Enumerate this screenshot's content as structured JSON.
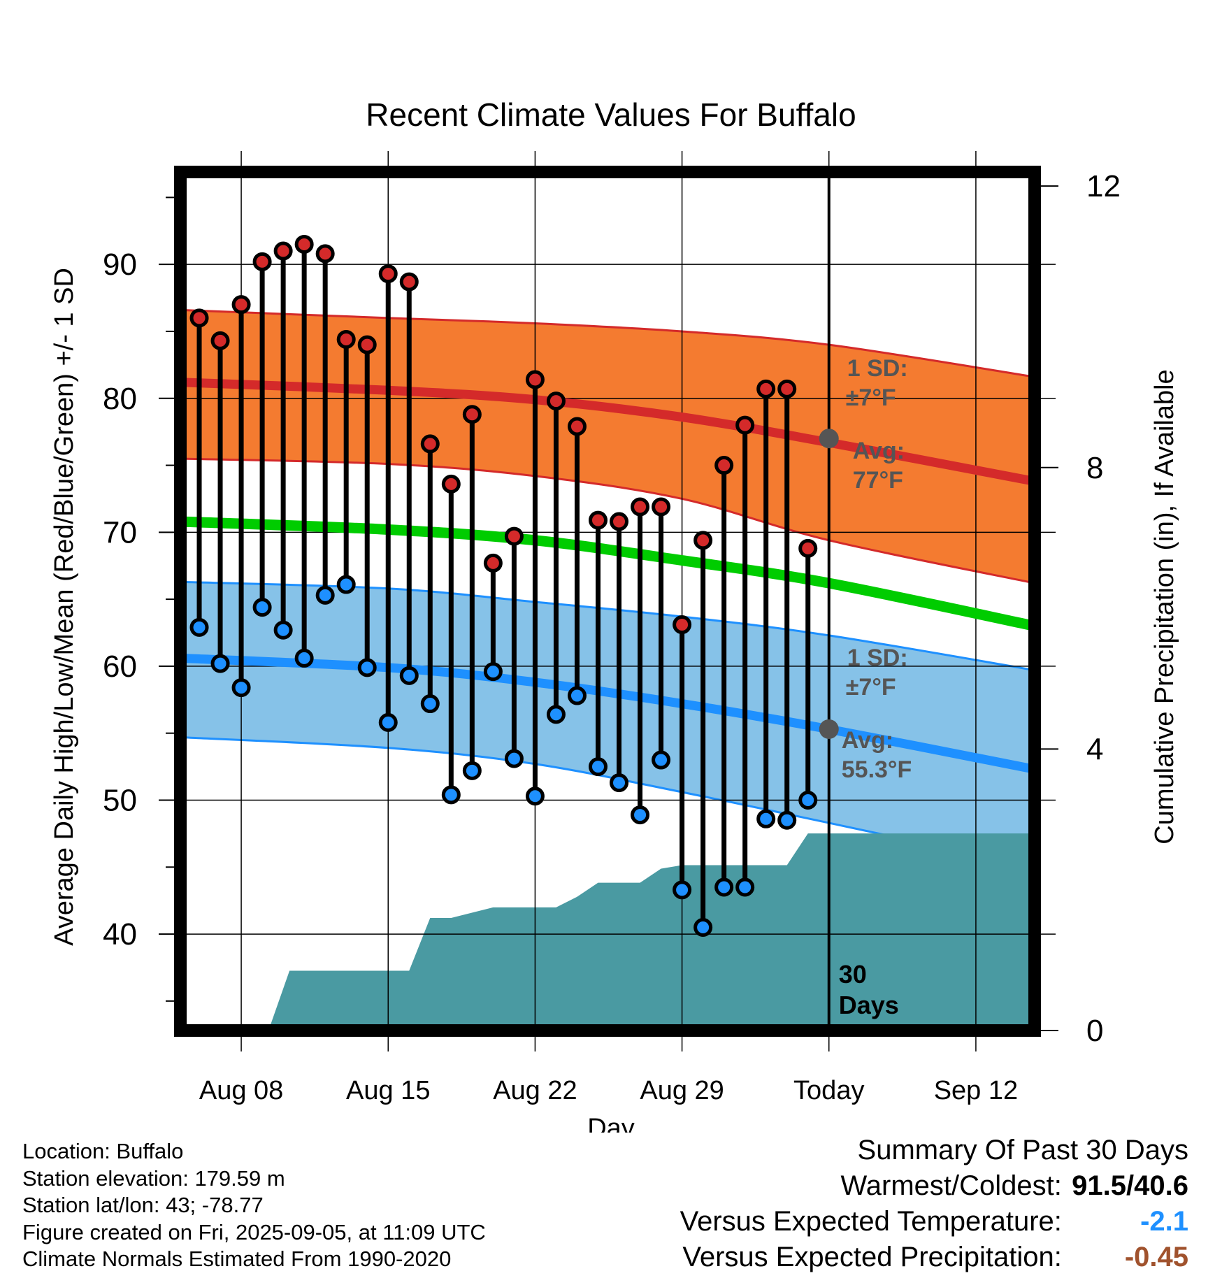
{
  "chart_data": {
    "type": "line",
    "title": "Recent Climate Values For Buffalo",
    "xlabel": "Day",
    "ylabel": "Average Daily High/Low/Mean (Red/Blue/Green) +/- 1 SD",
    "y2label": "Cumulative Precipitation (in), If Available",
    "x_tick_labels": [
      "Aug 08",
      "Aug 15",
      "Aug 22",
      "Aug 29",
      "Today",
      "Sep 12"
    ],
    "x_tick_days": [
      0,
      7,
      14,
      21,
      28,
      35
    ],
    "xlim": [
      -2.9,
      37.8
    ],
    "y_ticks": [
      40,
      50,
      60,
      70,
      80,
      90
    ],
    "ylim": [
      32.8,
      96.9
    ],
    "y2_ticks": [
      0,
      4,
      8,
      12
    ],
    "y2lim": [
      0,
      12.2
    ],
    "grid": true,
    "colors": {
      "high": "#d42a2a",
      "high_band": "#f47b30",
      "low": "#1e90ff",
      "low_band": "#86c2e8",
      "mean": "#00cc00",
      "precip": "#4a9aa2",
      "marker_today": "#555555"
    },
    "normal_high": {
      "x": [
        -2.9,
        7,
        14,
        21,
        28,
        37.8
      ],
      "values": [
        81.2,
        80.6,
        79.9,
        78.6,
        76.7,
        73.8
      ]
    },
    "normal_high_sd": {
      "plus": [
        86.6,
        86.0,
        85.6,
        85.0,
        84.0,
        81.6
      ],
      "minus": [
        75.5,
        75.1,
        74.2,
        72.5,
        69.4,
        66.2
      ]
    },
    "normal_mean": {
      "x": [
        -2.9,
        7,
        14,
        21,
        28,
        37.8
      ],
      "values": [
        70.8,
        70.2,
        69.4,
        67.9,
        66.2,
        63.0
      ]
    },
    "normal_low": {
      "x": [
        -2.9,
        7,
        14,
        21,
        28,
        37.8
      ],
      "values": [
        60.6,
        59.9,
        58.8,
        57.2,
        55.3,
        52.3
      ]
    },
    "normal_low_sd": {
      "plus": [
        66.3,
        65.8,
        64.8,
        63.7,
        62.3,
        59.7
      ],
      "minus": [
        54.7,
        53.9,
        52.7,
        50.6,
        48.3,
        45.0
      ]
    },
    "observed": {
      "days": [
        -2,
        -1,
        0,
        1,
        2,
        3,
        4,
        5,
        6,
        7,
        8,
        9,
        10,
        11,
        12,
        13,
        14,
        15,
        16,
        17,
        18,
        19,
        20,
        21,
        22,
        23,
        24,
        25,
        26,
        27
      ],
      "high": [
        86.0,
        84.3,
        87.0,
        90.2,
        91.0,
        91.5,
        90.8,
        84.4,
        84.0,
        89.3,
        88.7,
        76.6,
        73.6,
        78.8,
        67.7,
        69.7,
        81.4,
        79.8,
        77.9,
        70.9,
        70.8,
        71.9,
        71.9,
        63.1,
        69.4,
        75.0,
        78.0,
        80.7,
        80.7,
        68.8
      ],
      "low": [
        62.9,
        60.2,
        58.4,
        64.4,
        62.7,
        60.6,
        65.3,
        66.1,
        59.9,
        55.8,
        59.3,
        57.2,
        50.4,
        52.2,
        59.6,
        53.1,
        50.3,
        56.4,
        57.8,
        52.5,
        51.3,
        48.9,
        53.0,
        43.3,
        40.5,
        43.5,
        43.5,
        48.6,
        48.5,
        50.0
      ]
    },
    "precip_cumulative": {
      "x": [
        -2.9,
        1.3,
        2.3,
        6,
        7,
        8,
        9,
        10,
        12,
        13,
        14,
        15,
        16,
        17,
        18,
        19,
        20,
        21,
        22,
        23,
        24,
        25,
        26,
        27,
        28,
        37.8
      ],
      "values": [
        0,
        0,
        0.85,
        0.85,
        0.85,
        0.85,
        1.6,
        1.6,
        1.75,
        1.75,
        1.75,
        1.75,
        1.9,
        2.1,
        2.1,
        2.1,
        2.3,
        2.35,
        2.35,
        2.35,
        2.35,
        2.35,
        2.35,
        2.8,
        2.8,
        2.8
      ]
    },
    "annotations": {
      "high_sd_line1": "1 SD:",
      "high_sd_line2": "±7°F",
      "high_avg_line1": "Avg:",
      "high_avg_line2": "77°F",
      "high_avg_value": 77.0,
      "low_sd_line1": "1 SD:",
      "low_sd_line2": "±7°F",
      "low_avg_line1": "Avg:",
      "low_avg_line2": "55.3°F",
      "low_avg_value": 55.3,
      "today_line1": "30",
      "today_line2": "Days"
    }
  },
  "footer": {
    "location": "Location: Buffalo",
    "elevation": "Station elevation: 179.59 m",
    "latlon": "Station lat/lon: 43; -78.77",
    "created": "Figure created on Fri, 2025-09-05, at 11:09 UTC",
    "normals": "Climate Normals Estimated From 1990-2020"
  },
  "summary": {
    "heading": "Summary Of Past 30 Days",
    "warm_cold_label": "Warmest/Coldest:",
    "warm_cold_value": "91.5/40.6",
    "temp_label": "Versus Expected Temperature:",
    "temp_value": "-2.1",
    "temp_color": "#1e90ff",
    "precip_label": "Versus Expected Precipitation:",
    "precip_value": "-0.45",
    "precip_color": "#a0522d"
  }
}
